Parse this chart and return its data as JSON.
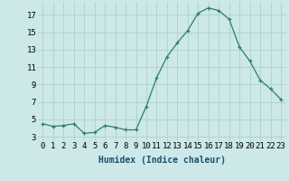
{
  "x": [
    0,
    1,
    2,
    3,
    4,
    5,
    6,
    7,
    8,
    9,
    10,
    11,
    12,
    13,
    14,
    15,
    16,
    17,
    18,
    19,
    20,
    21,
    22,
    23
  ],
  "y": [
    4.5,
    4.2,
    4.3,
    4.5,
    3.4,
    3.5,
    4.3,
    4.1,
    3.8,
    3.8,
    6.5,
    9.8,
    12.2,
    13.8,
    15.2,
    17.2,
    17.8,
    17.5,
    16.5,
    13.3,
    11.7,
    9.5,
    8.5,
    7.3
  ],
  "line_color": "#2e7d6e",
  "marker": "+",
  "bg_color": "#cce8e8",
  "grid_color": "#b0d0d0",
  "xlabel": "Humidex (Indice chaleur)",
  "ylabel_ticks": [
    3,
    5,
    7,
    9,
    11,
    13,
    15,
    17
  ],
  "xlim": [
    -0.5,
    23.5
  ],
  "ylim": [
    2.5,
    18.5
  ],
  "xtick_labels": [
    "0",
    "1",
    "2",
    "3",
    "4",
    "5",
    "6",
    "7",
    "8",
    "9",
    "10",
    "11",
    "12",
    "13",
    "14",
    "15",
    "16",
    "17",
    "18",
    "19",
    "20",
    "21",
    "22",
    "23"
  ],
  "axis_fontsize": 6.5,
  "label_fontsize": 7.0
}
